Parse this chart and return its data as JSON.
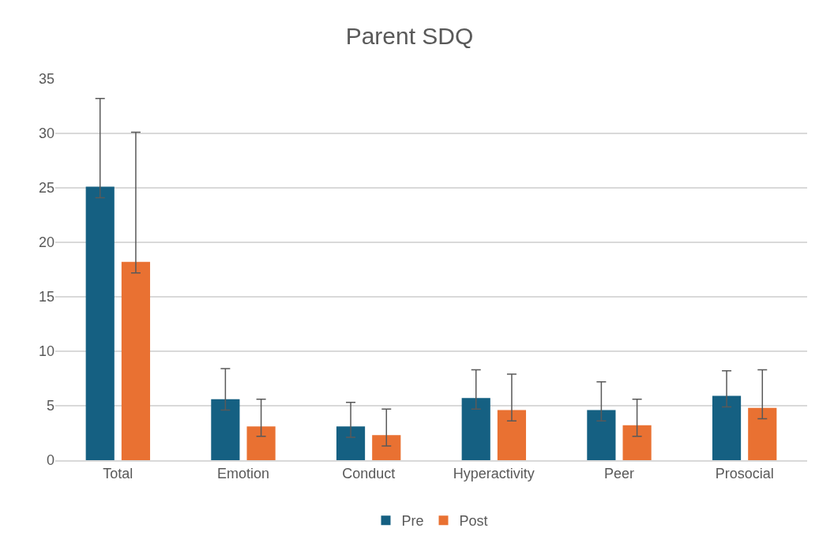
{
  "chart_data": {
    "type": "bar",
    "title": "Parent SDQ",
    "categories": [
      "Total",
      "Emotion",
      "Conduct",
      "Hyperactivity",
      "Peer",
      "Prosocial"
    ],
    "series": [
      {
        "name": "Pre",
        "color": "#156082",
        "values": [
          25.1,
          5.6,
          3.1,
          5.7,
          4.6,
          5.9
        ],
        "errors": [
          [
            24.1,
            33.2
          ],
          [
            4.6,
            8.4
          ],
          [
            2.1,
            5.3
          ],
          [
            4.7,
            8.3
          ],
          [
            3.6,
            7.2
          ],
          [
            4.9,
            8.2
          ]
        ]
      },
      {
        "name": "Post",
        "color": "#e97132",
        "values": [
          18.2,
          3.1,
          2.3,
          4.6,
          3.2,
          4.8
        ],
        "errors": [
          [
            17.2,
            30.1
          ],
          [
            2.2,
            5.6
          ],
          [
            1.3,
            4.7
          ],
          [
            3.6,
            7.9
          ],
          [
            2.2,
            5.6
          ],
          [
            3.8,
            8.3
          ]
        ]
      }
    ],
    "ylim": [
      0,
      35
    ],
    "yticks": [
      0,
      5,
      10,
      15,
      20,
      25,
      30,
      35
    ],
    "grid": "y",
    "legend": "bottom"
  }
}
